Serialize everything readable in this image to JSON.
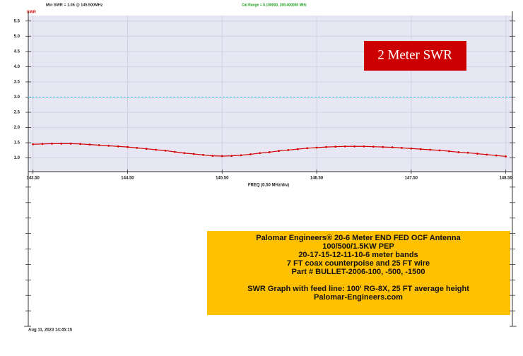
{
  "chart_data": {
    "type": "line",
    "title": "2 Meter SWR",
    "subtitle": "Min SWR = 1.06 @ 145.500MHz",
    "cal_range": "Cal Range = 0.100000, 300.400000 MHz",
    "ylabel": "SWR",
    "xlabel": "FREQ (0.50 MHz/div)",
    "timestamp": "Aug 11, 2023 14:45:15",
    "notes": [
      [
        "Palomar Engineers® 20-6 Meter END FED OCF Antenna",
        "100/500/1.5KW PEP",
        "20-17-15-12-11-10-6 meter bands",
        "7 FT coax counterpoise and 25 FT wire",
        "Part # BULLET-2006-100, -500, -1500"
      ],
      [
        "SWR Graph with feed line: 100' RG-8X, 25 FT average height",
        "Palomar-Engineers.com"
      ]
    ],
    "x": [
      143.5,
      143.6,
      143.7,
      143.8,
      143.9,
      144.0,
      144.1,
      144.2,
      144.3,
      144.4,
      144.5,
      144.6,
      144.7,
      144.8,
      144.9,
      145.0,
      145.1,
      145.2,
      145.3,
      145.4,
      145.5,
      145.6,
      145.7,
      145.8,
      145.9,
      146.0,
      146.1,
      146.2,
      146.3,
      146.4,
      146.5,
      146.6,
      146.7,
      146.8,
      146.9,
      147.0,
      147.1,
      147.2,
      147.3,
      147.4,
      147.5,
      147.6,
      147.7,
      147.8,
      147.9,
      148.0,
      148.1,
      148.2,
      148.3,
      148.4,
      148.5
    ],
    "series": [
      {
        "name": "SWR",
        "color": "#d40000",
        "values": [
          1.45,
          1.46,
          1.47,
          1.47,
          1.47,
          1.46,
          1.44,
          1.42,
          1.4,
          1.38,
          1.36,
          1.33,
          1.3,
          1.27,
          1.24,
          1.2,
          1.16,
          1.13,
          1.1,
          1.07,
          1.06,
          1.07,
          1.09,
          1.12,
          1.16,
          1.19,
          1.23,
          1.26,
          1.29,
          1.32,
          1.34,
          1.36,
          1.37,
          1.38,
          1.38,
          1.38,
          1.37,
          1.36,
          1.35,
          1.33,
          1.31,
          1.29,
          1.27,
          1.25,
          1.22,
          1.19,
          1.17,
          1.14,
          1.11,
          1.08,
          1.05
        ]
      }
    ],
    "reference_line": {
      "value": 3,
      "color": "#27c6d8"
    },
    "xlim": [
      143.45,
      148.57
    ],
    "ylim": [
      0.55,
      5.68
    ],
    "xticks": [
      {
        "value": 143.5,
        "label": "143.50"
      },
      {
        "value": 144.5,
        "label": "144.50"
      },
      {
        "value": 145.5,
        "label": "145.50"
      },
      {
        "value": 146.5,
        "label": "146.50"
      },
      {
        "value": 147.5,
        "label": "147.50"
      },
      {
        "value": 148.5,
        "label": "148.50"
      }
    ],
    "yticks": [
      {
        "value": 1,
        "label": "1.0"
      },
      1.5,
      {
        "value": 2,
        "label": "2.0"
      },
      2.5,
      {
        "value": 3,
        "label": "3.0"
      },
      3.5,
      {
        "value": 4,
        "label": "4.0"
      },
      4.5,
      {
        "value": 5,
        "label": "5.0"
      },
      5.5
    ],
    "grid": true
  }
}
